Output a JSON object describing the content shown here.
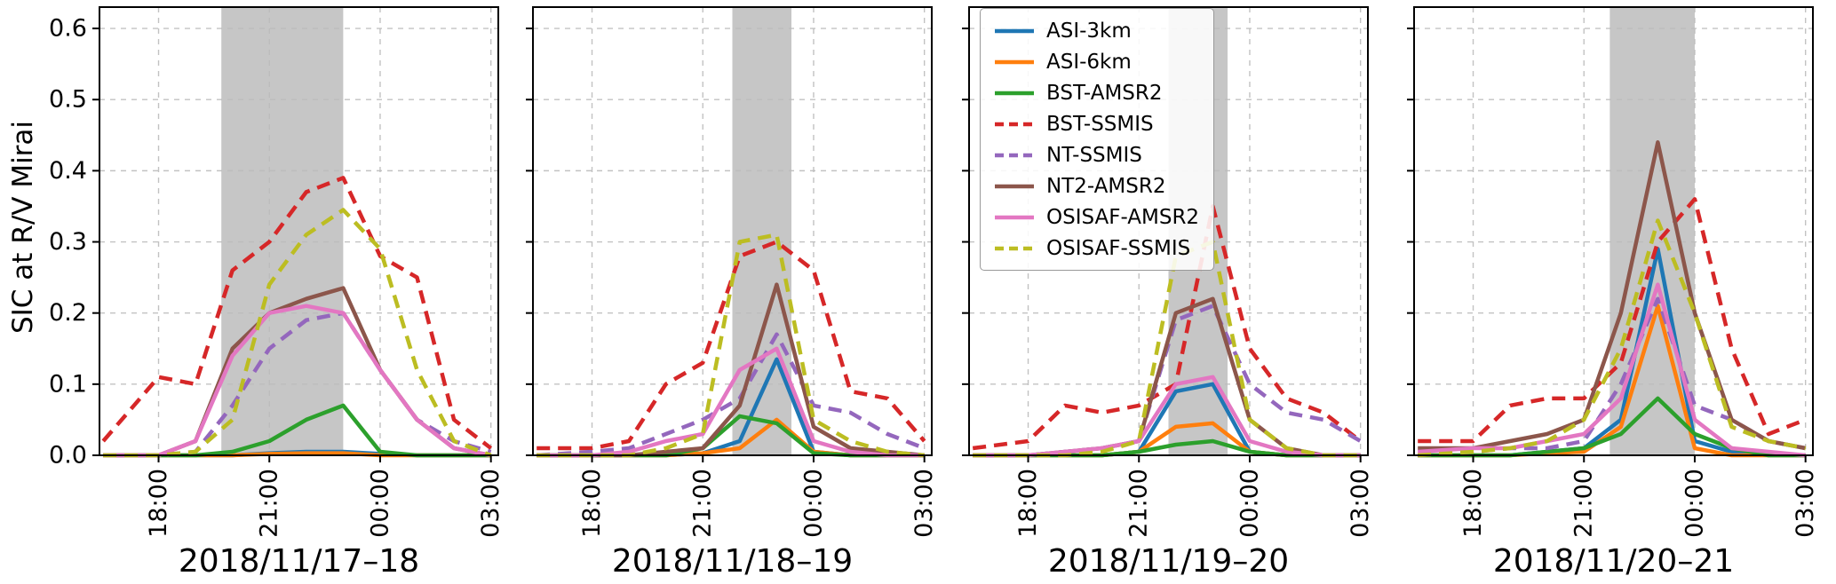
{
  "chart_data": {
    "type": "line",
    "title": "",
    "ylabel": "SIC at R/V Mirai",
    "ylim": [
      0,
      0.63
    ],
    "yticks": [
      0,
      0.1,
      0.2,
      0.3,
      0.4,
      0.5,
      0.6
    ],
    "grid": true,
    "band_color": "#808080",
    "legend_position": "upper area over third panel",
    "xlim": [
      16.4,
      27.2
    ],
    "x_hours": [
      16.5,
      18,
      19,
      20,
      21,
      22,
      23,
      24,
      25,
      26,
      27
    ],
    "xticks": [
      {
        "hour": 18,
        "label": "18:00"
      },
      {
        "hour": 21,
        "label": "21:00"
      },
      {
        "hour": 24,
        "label": "00:00"
      },
      {
        "hour": 27,
        "label": "03:00"
      }
    ],
    "series_meta": [
      {
        "name": "ASI-3km",
        "color": "#1f77b4",
        "dashed": false
      },
      {
        "name": "ASI-6km",
        "color": "#ff7f0e",
        "dashed": false
      },
      {
        "name": "BST-AMSR2",
        "color": "#2ca02c",
        "dashed": false
      },
      {
        "name": "BST-SSMIS",
        "color": "#d62728",
        "dashed": true
      },
      {
        "name": "NT-SSMIS",
        "color": "#9467bd",
        "dashed": true
      },
      {
        "name": "NT2-AMSR2",
        "color": "#8c564b",
        "dashed": false
      },
      {
        "name": "OSISAF-AMSR2",
        "color": "#e377c2",
        "dashed": false
      },
      {
        "name": "OSISAF-SSMIS",
        "color": "#bcbd22",
        "dashed": true
      }
    ],
    "panels": [
      {
        "label": "2018/11/17–18",
        "band": [
          19.7,
          23.0
        ],
        "series": {
          "ASI-3km": [
            0,
            0,
            0,
            0,
            0.003,
            0.005,
            0.005,
            0.002,
            0,
            0,
            0
          ],
          "ASI-6km": [
            0,
            0,
            0,
            0,
            0.002,
            0.003,
            0.003,
            0,
            0,
            0,
            0
          ],
          "BST-AMSR2": [
            0,
            0,
            0,
            0.005,
            0.02,
            0.05,
            0.07,
            0.005,
            0,
            0,
            0
          ],
          "BST-SSMIS": [
            0.02,
            0.11,
            0.1,
            0.26,
            0.3,
            0.37,
            0.39,
            0.28,
            0.25,
            0.05,
            0.01
          ],
          "NT-SSMIS": [
            0,
            0,
            0.005,
            0.07,
            0.15,
            0.19,
            0.2,
            0.12,
            0.05,
            0.02,
            0.005
          ],
          "NT2-AMSR2": [
            0,
            0,
            0.02,
            0.15,
            0.2,
            0.22,
            0.235,
            0.12,
            0.05,
            0.01,
            0
          ],
          "OSISAF-AMSR2": [
            0,
            0,
            0.02,
            0.14,
            0.2,
            0.21,
            0.2,
            0.12,
            0.05,
            0.01,
            0
          ],
          "OSISAF-SSMIS": [
            0,
            0,
            0.005,
            0.05,
            0.24,
            0.31,
            0.345,
            0.29,
            0.12,
            0.02,
            0
          ]
        }
      },
      {
        "label": "2018/11/18–19",
        "band": [
          21.8,
          23.4
        ],
        "series": {
          "ASI-3km": [
            0,
            0,
            0,
            0,
            0.003,
            0.02,
            0.135,
            0.005,
            0,
            0,
            0
          ],
          "ASI-6km": [
            0,
            0,
            0,
            0,
            0.003,
            0.01,
            0.05,
            0.005,
            0,
            0,
            0
          ],
          "BST-AMSR2": [
            0,
            0,
            0,
            0,
            0.01,
            0.055,
            0.045,
            0.003,
            0,
            0,
            0
          ],
          "BST-SSMIS": [
            0.01,
            0.01,
            0.02,
            0.1,
            0.13,
            0.28,
            0.3,
            0.26,
            0.09,
            0.08,
            0.02
          ],
          "NT-SSMIS": [
            0,
            0.005,
            0.01,
            0.03,
            0.05,
            0.08,
            0.17,
            0.07,
            0.06,
            0.03,
            0.01
          ],
          "NT2-AMSR2": [
            0,
            0,
            0,
            0.005,
            0.01,
            0.07,
            0.24,
            0.04,
            0.01,
            0.005,
            0
          ],
          "OSISAF-AMSR2": [
            0,
            0,
            0.005,
            0.02,
            0.03,
            0.12,
            0.15,
            0.02,
            0.005,
            0,
            0
          ],
          "OSISAF-SSMIS": [
            0,
            0,
            0,
            0.01,
            0.03,
            0.3,
            0.31,
            0.05,
            0.02,
            0.005,
            0
          ]
        }
      },
      {
        "label": "2018/11/19–20",
        "band": [
          21.8,
          23.4
        ],
        "series": {
          "ASI-3km": [
            0,
            0,
            0,
            0,
            0.005,
            0.09,
            0.1,
            0.005,
            0,
            0,
            0
          ],
          "ASI-6km": [
            0,
            0,
            0,
            0,
            0.005,
            0.04,
            0.045,
            0.005,
            0,
            0,
            0
          ],
          "BST-AMSR2": [
            0,
            0,
            0,
            0,
            0.005,
            0.015,
            0.02,
            0.005,
            0,
            0,
            0
          ],
          "BST-SSMIS": [
            0.01,
            0.02,
            0.07,
            0.06,
            0.07,
            0.1,
            0.35,
            0.15,
            0.08,
            0.06,
            0.02
          ],
          "NT-SSMIS": [
            0,
            0,
            0.005,
            0.01,
            0.02,
            0.19,
            0.21,
            0.1,
            0.06,
            0.05,
            0.02
          ],
          "NT2-AMSR2": [
            0,
            0,
            0.005,
            0.01,
            0.02,
            0.2,
            0.22,
            0.05,
            0.01,
            0,
            0
          ],
          "OSISAF-AMSR2": [
            0,
            0,
            0.005,
            0.01,
            0.02,
            0.1,
            0.11,
            0.02,
            0.005,
            0,
            0
          ],
          "OSISAF-SSMIS": [
            0,
            0,
            0,
            0.005,
            0.02,
            0.28,
            0.3,
            0.05,
            0.01,
            0,
            0
          ]
        }
      },
      {
        "label": "2018/11/20–21",
        "band": [
          21.7,
          24.0
        ],
        "series": {
          "ASI-3km": [
            0,
            0,
            0,
            0.005,
            0.01,
            0.05,
            0.29,
            0.02,
            0.005,
            0,
            0
          ],
          "ASI-6km": [
            0,
            0,
            0,
            0.003,
            0.005,
            0.04,
            0.21,
            0.01,
            0,
            0,
            0
          ],
          "BST-AMSR2": [
            0,
            0,
            0,
            0.005,
            0.01,
            0.03,
            0.08,
            0.03,
            0.01,
            0,
            0
          ],
          "BST-SSMIS": [
            0.02,
            0.02,
            0.07,
            0.08,
            0.08,
            0.13,
            0.3,
            0.36,
            0.15,
            0.03,
            0.05
          ],
          "NT-SSMIS": [
            0,
            0.005,
            0.01,
            0.01,
            0.02,
            0.1,
            0.22,
            0.07,
            0.05,
            0.02,
            0.01
          ],
          "NT2-AMSR2": [
            0.01,
            0.01,
            0.02,
            0.03,
            0.05,
            0.2,
            0.44,
            0.2,
            0.05,
            0.02,
            0.01
          ],
          "OSISAF-AMSR2": [
            0.005,
            0.01,
            0.01,
            0.02,
            0.03,
            0.08,
            0.24,
            0.05,
            0.01,
            0.005,
            0
          ],
          "OSISAF-SSMIS": [
            0,
            0.005,
            0.01,
            0.02,
            0.05,
            0.15,
            0.33,
            0.2,
            0.04,
            0.02,
            0.01
          ]
        }
      }
    ]
  }
}
